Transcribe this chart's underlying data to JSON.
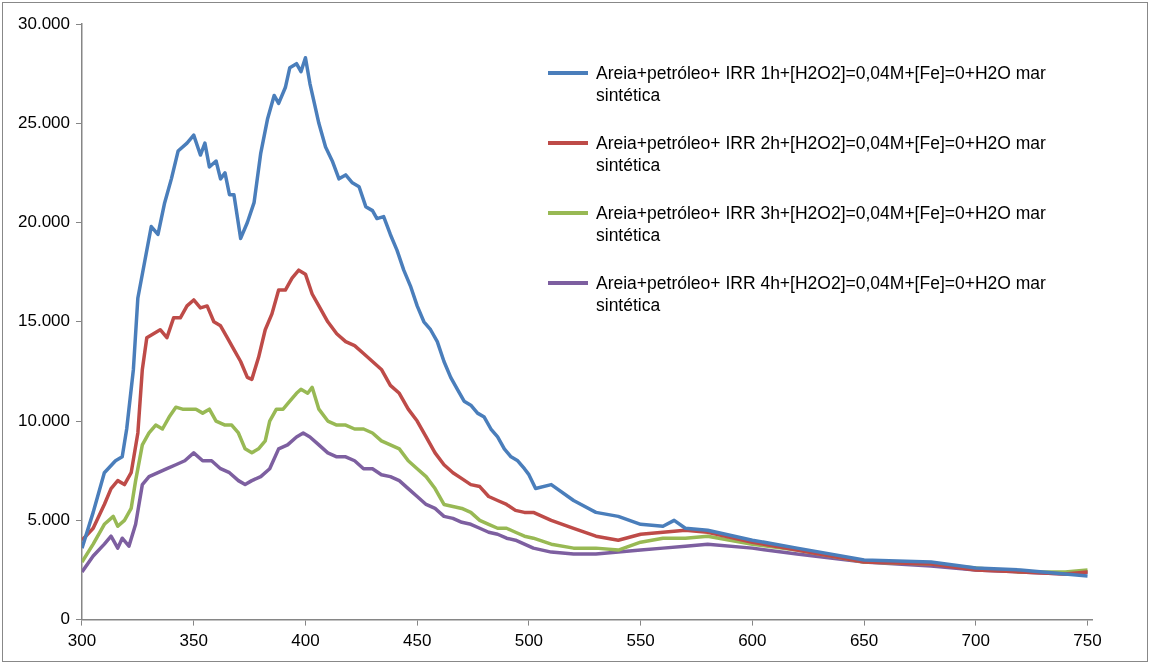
{
  "chart_data": {
    "type": "line",
    "legend": "right",
    "grid": false,
    "marker": "none",
    "line_style": "solid",
    "xlim": [
      300,
      752
    ],
    "xticks": [
      300,
      350,
      400,
      450,
      500,
      550,
      600,
      650,
      700,
      750
    ],
    "ylim": [
      0,
      30000
    ],
    "yticks": [
      0,
      {
        "value": 5000,
        "label": "5.000"
      },
      {
        "value": 10000,
        "label": "10.000"
      },
      {
        "value": 15000,
        "label": "15.000"
      },
      {
        "value": 20000,
        "label": "20.000"
      },
      {
        "value": 25000,
        "label": "25.000"
      },
      {
        "value": 30000,
        "label": "30.000"
      }
    ],
    "series": [
      {
        "name": "Areia+petróleo+ IRR 1h+[H2O2]=0,04M+[Fe]=0+H2O mar sintética",
        "color": "#4a7ebb",
        "x": [
          300,
          305,
          310,
          315,
          318,
          320,
          323,
          325,
          328,
          331,
          334,
          337,
          340,
          343,
          347,
          350,
          353,
          355,
          357,
          360,
          362,
          364,
          366,
          368,
          371,
          374,
          377,
          380,
          383,
          386,
          388,
          391,
          393,
          396,
          398,
          400,
          402,
          404,
          406,
          409,
          412,
          415,
          418,
          421,
          424,
          427,
          430,
          432,
          435,
          438,
          441,
          444,
          447,
          450,
          453,
          456,
          459,
          462,
          465,
          468,
          471,
          474,
          477,
          480,
          483,
          486,
          489,
          492,
          495,
          498,
          500,
          503,
          510,
          520,
          530,
          540,
          550,
          560,
          565,
          570,
          580,
          600,
          620,
          650,
          680,
          700,
          720,
          740,
          750
        ],
        "values": [
          3600,
          5400,
          7400,
          8000,
          8200,
          9600,
          12600,
          16200,
          18000,
          19800,
          19400,
          21000,
          22200,
          23600,
          24000,
          24400,
          23400,
          24000,
          22800,
          23100,
          22200,
          22500,
          21400,
          21400,
          19200,
          20000,
          21000,
          23500,
          25200,
          26400,
          26000,
          26800,
          27800,
          28000,
          27600,
          28300,
          27000,
          26000,
          25000,
          23800,
          23100,
          22200,
          22400,
          22000,
          21800,
          20800,
          20600,
          20200,
          20300,
          19400,
          18600,
          17600,
          16800,
          15800,
          15000,
          14600,
          14000,
          13000,
          12200,
          11600,
          11000,
          10800,
          10400,
          10200,
          9600,
          9200,
          8600,
          8200,
          8000,
          7600,
          7300,
          6600,
          6800,
          6000,
          5400,
          5200,
          4800,
          4700,
          5000,
          4600,
          4500,
          4000,
          3600,
          3000,
          2900,
          2600,
          2500,
          2300,
          2200
        ]
      },
      {
        "name": "Areia+petróleo+ IRR 2h+[H2O2]=0,04M+[Fe]=0+H2O mar sintética",
        "color": "#be4b48",
        "x": [
          300,
          305,
          310,
          313,
          316,
          319,
          322,
          325,
          327,
          329,
          332,
          335,
          338,
          341,
          344,
          347,
          350,
          353,
          356,
          359,
          362,
          365,
          368,
          371,
          374,
          376,
          379,
          382,
          385,
          388,
          391,
          394,
          397,
          400,
          403,
          406,
          410,
          414,
          418,
          422,
          426,
          430,
          434,
          438,
          442,
          446,
          450,
          454,
          458,
          462,
          466,
          470,
          474,
          478,
          482,
          486,
          490,
          494,
          498,
          502,
          510,
          520,
          530,
          540,
          550,
          560,
          570,
          580,
          600,
          620,
          650,
          680,
          700,
          720,
          740,
          750
        ],
        "values": [
          4000,
          4600,
          5800,
          6600,
          7000,
          6800,
          7400,
          9400,
          12600,
          14200,
          14400,
          14600,
          14200,
          15200,
          15200,
          15800,
          16100,
          15700,
          15800,
          15000,
          14800,
          14200,
          13600,
          13000,
          12200,
          12100,
          13200,
          14600,
          15400,
          16600,
          16600,
          17200,
          17600,
          17400,
          16400,
          15800,
          15000,
          14400,
          14000,
          13800,
          13400,
          13000,
          12600,
          11800,
          11400,
          10600,
          10000,
          9200,
          8400,
          7800,
          7400,
          7100,
          6800,
          6700,
          6200,
          6000,
          5800,
          5500,
          5400,
          5400,
          5000,
          4600,
          4200,
          4000,
          4300,
          4400,
          4500,
          4400,
          3900,
          3500,
          2900,
          2800,
          2500,
          2400,
          2300,
          2400
        ]
      },
      {
        "name": "Areia+petróleo+ IRR 3h+[H2O2]=0,04M+[Fe]=0+H2O mar sintética",
        "color": "#98b954",
        "x": [
          300,
          305,
          310,
          314,
          316,
          319,
          322,
          324,
          327,
          330,
          333,
          336,
          339,
          342,
          345,
          348,
          351,
          354,
          357,
          360,
          364,
          367,
          370,
          373,
          376,
          379,
          382,
          384,
          387,
          390,
          393,
          396,
          398,
          401,
          403,
          406,
          410,
          414,
          418,
          422,
          426,
          430,
          434,
          438,
          442,
          446,
          450,
          454,
          458,
          462,
          466,
          470,
          474,
          478,
          482,
          486,
          490,
          494,
          498,
          502,
          510,
          520,
          530,
          540,
          550,
          560,
          570,
          580,
          600,
          620,
          650,
          680,
          700,
          720,
          740,
          750
        ],
        "values": [
          2900,
          3800,
          4800,
          5200,
          4700,
          5000,
          5600,
          7000,
          8800,
          9400,
          9800,
          9600,
          10200,
          10700,
          10600,
          10600,
          10600,
          10400,
          10600,
          10000,
          9800,
          9800,
          9400,
          8600,
          8400,
          8600,
          9000,
          10000,
          10600,
          10600,
          11000,
          11400,
          11600,
          11400,
          11700,
          10600,
          10000,
          9800,
          9800,
          9600,
          9600,
          9400,
          9000,
          8800,
          8600,
          8000,
          7600,
          7200,
          6600,
          5800,
          5700,
          5600,
          5400,
          5000,
          4800,
          4600,
          4600,
          4400,
          4200,
          4100,
          3800,
          3600,
          3600,
          3500,
          3900,
          4100,
          4100,
          4200,
          3800,
          3500,
          2900,
          2800,
          2600,
          2400,
          2400,
          2500
        ]
      },
      {
        "name": "Areia+petróleo+ IRR 4h+[H2O2]=0,04M+[Fe]=0+H2O mar sintética",
        "color": "#7d5fa0",
        "x": [
          300,
          305,
          310,
          313,
          316,
          318,
          321,
          324,
          327,
          330,
          334,
          338,
          342,
          346,
          350,
          354,
          358,
          362,
          366,
          370,
          373,
          376,
          380,
          384,
          388,
          392,
          396,
          399,
          402,
          406,
          410,
          414,
          418,
          422,
          426,
          430,
          434,
          438,
          442,
          446,
          450,
          454,
          458,
          462,
          466,
          470,
          474,
          478,
          482,
          486,
          490,
          494,
          498,
          502,
          510,
          520,
          530,
          540,
          550,
          560,
          570,
          580,
          600,
          620,
          650,
          680,
          700,
          720,
          740,
          750
        ],
        "values": [
          2400,
          3200,
          3800,
          4200,
          3600,
          4100,
          3700,
          4800,
          6800,
          7200,
          7400,
          7600,
          7800,
          8000,
          8400,
          8000,
          8000,
          7600,
          7400,
          7000,
          6800,
          7000,
          7200,
          7600,
          8600,
          8800,
          9200,
          9400,
          9200,
          8800,
          8400,
          8200,
          8200,
          8000,
          7600,
          7600,
          7300,
          7200,
          7000,
          6600,
          6200,
          5800,
          5600,
          5200,
          5100,
          4900,
          4800,
          4600,
          4400,
          4300,
          4100,
          4000,
          3800,
          3600,
          3400,
          3300,
          3300,
          3400,
          3500,
          3600,
          3700,
          3800,
          3600,
          3300,
          2900,
          2700,
          2500,
          2400,
          2300,
          2400
        ]
      }
    ]
  }
}
